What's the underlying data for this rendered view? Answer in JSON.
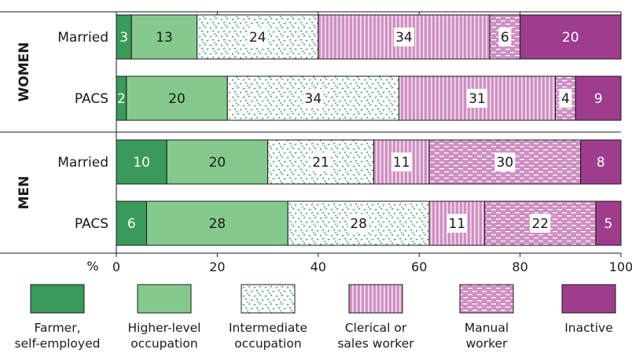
{
  "chart_data": {
    "type": "bar",
    "orientation": "horizontal",
    "stacked": true,
    "x_unit": "%",
    "xlim": [
      0,
      100
    ],
    "x_ticks": [
      "0",
      "20",
      "40",
      "60",
      "80",
      "100"
    ],
    "groups": [
      {
        "label": "WOMEN",
        "rows": [
          {
            "label": "Married",
            "values": [
              3,
              13,
              24,
              34,
              6,
              20
            ]
          },
          {
            "label": "PACS",
            "values": [
              2,
              20,
              34,
              31,
              4,
              9
            ]
          }
        ]
      },
      {
        "label": "MEN",
        "rows": [
          {
            "label": "Married",
            "values": [
              10,
              20,
              21,
              11,
              30,
              8
            ]
          },
          {
            "label": "PACS",
            "values": [
              6,
              28,
              28,
              11,
              22,
              5
            ]
          }
        ]
      }
    ],
    "series": [
      {
        "name_lines": [
          "Farmer,",
          "self-employed"
        ],
        "color": "#3a9a5b",
        "pattern": "solid",
        "label_color": "#ffffff"
      },
      {
        "name_lines": [
          "Higher-level",
          "occupation"
        ],
        "color": "#86c98e",
        "pattern": "solid",
        "label_color": "#1a1a1a"
      },
      {
        "name_lines": [
          "Intermediate",
          "occupation"
        ],
        "color": "#ffffff",
        "pattern": "dots",
        "dot_color": "#3a9a5b",
        "label_color": "#1a1a1a"
      },
      {
        "name_lines": [
          "Clerical or",
          "sales worker"
        ],
        "color": "#cf8fc2",
        "pattern": "vlines",
        "line_color": "#ffffff",
        "label_color": "#1a1a1a"
      },
      {
        "name_lines": [
          "Manual",
          "worker"
        ],
        "color": "#cf8fc2",
        "pattern": "dashes",
        "line_color": "#ffffff",
        "label_color": "#1a1a1a"
      },
      {
        "name_lines": [
          "Inactive"
        ],
        "color": "#9e3d8d",
        "pattern": "solid",
        "label_color": "#ffffff"
      }
    ],
    "legend_position": "bottom",
    "grid": false
  }
}
